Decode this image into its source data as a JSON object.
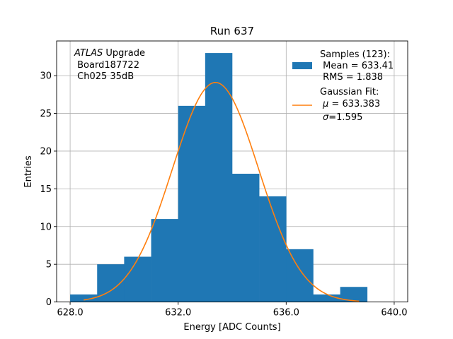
{
  "chart_data": {
    "type": "histogram",
    "title": "Run 637",
    "xlabel": "Energy [ADC Counts]",
    "ylabel": "Entries",
    "xlim": [
      627.5,
      640.5
    ],
    "ylim": [
      0,
      34.6
    ],
    "xticks": [
      628.0,
      632.0,
      636.0,
      640.0
    ],
    "xtick_labels": [
      "628.0",
      "632.0",
      "636.0",
      "640.0"
    ],
    "yticks": [
      0,
      5,
      10,
      15,
      20,
      25,
      30
    ],
    "ytick_labels": [
      "0",
      "5",
      "10",
      "15",
      "20",
      "25",
      "30"
    ],
    "grid": true,
    "bins": [
      {
        "x0": 628,
        "x1": 629,
        "count": 1
      },
      {
        "x0": 629,
        "x1": 630,
        "count": 5
      },
      {
        "x0": 630,
        "x1": 631,
        "count": 6
      },
      {
        "x0": 631,
        "x1": 632,
        "count": 11
      },
      {
        "x0": 632,
        "x1": 633,
        "count": 26
      },
      {
        "x0": 633,
        "x1": 634,
        "count": 33
      },
      {
        "x0": 634,
        "x1": 635,
        "count": 17
      },
      {
        "x0": 635,
        "x1": 636,
        "count": 14
      },
      {
        "x0": 636,
        "x1": 637,
        "count": 7
      },
      {
        "x0": 637,
        "x1": 638,
        "count": 1
      },
      {
        "x0": 638,
        "x1": 639,
        "count": 2
      }
    ],
    "fit": {
      "mu": 633.383,
      "sigma": 1.595,
      "amplitude": 29.1,
      "x_range": [
        628.5,
        638.7
      ]
    },
    "colors": {
      "histogram": "#1f77b4",
      "fit": "#ff7f0e",
      "grid": "#b0b0b0"
    },
    "annotation": {
      "line1_italic": "ATLAS",
      "line1_rest": " Upgrade",
      "line2": " Board187722",
      "line3": " Ch025 35dB"
    },
    "legend": {
      "samples_line1": "Samples (123):",
      "samples_line2": " Mean = 633.41",
      "samples_line3": " RMS = 1.838",
      "fit_line1": "Gaussian Fit:",
      "fit_line2_sym": "μ",
      "fit_line2_rest": " = 633.383",
      "fit_line3_sym": "σ",
      "fit_line3_rest": "=1.595"
    }
  }
}
